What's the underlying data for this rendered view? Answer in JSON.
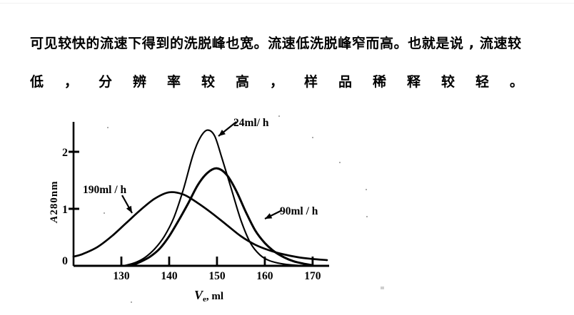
{
  "paragraph": {
    "line1": "可见较快的流速下得到的洗脱峰也宽。流速低洗脱峰窄而高。也就是说 , 流速较",
    "line2": "低，分辨率较高，样品稀释较轻。"
  },
  "chart_data": {
    "type": "line",
    "title": "",
    "xlabel": "Ve, ml",
    "ylabel": "A280nm",
    "xlim": [
      120,
      173
    ],
    "ylim": [
      0,
      2.5
    ],
    "xticks": [
      130,
      140,
      150,
      160,
      170
    ],
    "yticks": [
      0,
      1,
      2
    ],
    "grid": false,
    "legend_position": "inline-arrow-labels",
    "line_color": "#000000",
    "series": [
      {
        "name": "24ml/ h",
        "x": [
          130.5,
          133,
          135,
          137,
          139,
          141,
          143,
          145,
          146.5,
          148,
          149.5,
          151,
          153,
          155,
          157,
          159,
          161,
          164,
          168
        ],
        "y": [
          0,
          0.06,
          0.15,
          0.3,
          0.52,
          0.85,
          1.35,
          1.95,
          2.25,
          2.38,
          2.28,
          1.9,
          1.35,
          0.8,
          0.4,
          0.19,
          0.09,
          0.03,
          0
        ]
      },
      {
        "name": "90ml / h",
        "x": [
          132,
          134,
          136,
          138,
          140,
          142,
          144,
          146,
          148,
          150,
          152,
          154,
          156,
          158,
          160,
          162,
          164,
          166,
          168,
          170
        ],
        "y": [
          0,
          0.07,
          0.16,
          0.3,
          0.52,
          0.8,
          1.1,
          1.42,
          1.63,
          1.71,
          1.6,
          1.32,
          0.95,
          0.62,
          0.4,
          0.25,
          0.15,
          0.08,
          0.04,
          0.01
        ]
      },
      {
        "name": "190ml / h",
        "x": [
          120,
          122,
          125,
          128,
          131,
          134,
          137,
          140,
          143,
          146,
          149,
          152,
          155,
          158,
          161,
          164,
          167,
          170,
          173
        ],
        "y": [
          0.16,
          0.21,
          0.33,
          0.52,
          0.75,
          0.98,
          1.18,
          1.29,
          1.25,
          1.1,
          0.92,
          0.72,
          0.52,
          0.37,
          0.27,
          0.2,
          0.15,
          0.12,
          0.1
        ]
      }
    ]
  }
}
